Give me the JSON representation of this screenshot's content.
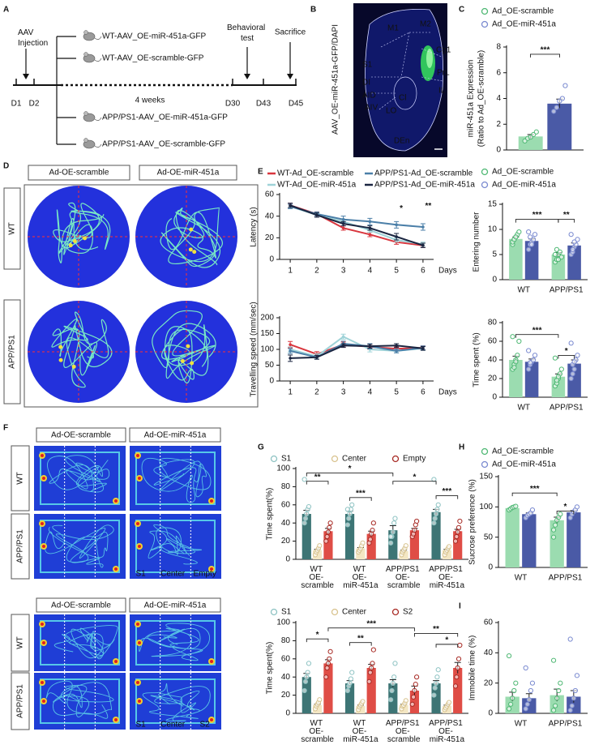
{
  "panels": [
    "A",
    "B",
    "C",
    "D",
    "E",
    "F",
    "G",
    "H",
    "I"
  ],
  "timeline": {
    "injection": "AAV Injection",
    "behavioral": "Behavioral test",
    "sacrifice": "Sacrifice",
    "days": [
      "D1",
      "D2",
      "D30",
      "D43",
      "D45"
    ],
    "duration": "4 weeks",
    "groups": [
      "WT-AAV_OE-miR-451a-GFP",
      "WT-AAV_OE-scramble-GFP",
      "APP/PS1-AAV_OE-miR-451a-GFP",
      "APP/PS1-AAV_OE-scramble-GFP"
    ]
  },
  "image": {
    "label": "AAV_OE-miR-451a-GFP/DAPI",
    "regions": [
      "M1",
      "M2",
      "Cg1",
      "PrL",
      "IL",
      "S1",
      "DI",
      "AID",
      "AIV",
      "LO",
      "Cl",
      "DEn"
    ]
  },
  "maze": {
    "columns": [
      "Ad-OE-scramble",
      "Ad-OE-miR-451a"
    ],
    "rows": [
      "WT",
      "APP/PS1"
    ]
  },
  "three_chamber": {
    "blocks": [
      {
        "columns": [
          "Ad-OE-scramble",
          "Ad-OE-miR-451a"
        ],
        "rows": [
          "WT",
          "APP/PS1"
        ],
        "zones": [
          "S1",
          "Center",
          "Empty"
        ]
      },
      {
        "columns": [
          "Ad-OE-scramble",
          "Ad-OE-miR-451a"
        ],
        "rows": [
          "WT",
          "APP/PS1"
        ],
        "zones": [
          "S1",
          "Center",
          "S2"
        ]
      }
    ]
  },
  "chart_data": [
    {
      "type": "bar",
      "ylabel": [
        "miR-451a Expression",
        "(Ratio to Ad_OE-scramble)"
      ],
      "categories": [
        null
      ],
      "series": [
        {
          "name": "Ad_OE-scramble",
          "color": "#9bdcb0",
          "point_color": "#4fb874",
          "values": [
            1.05
          ],
          "errors": [
            0.15
          ],
          "points": [
            [
              0.7,
              0.9,
              1.0,
              1.2,
              1.4
            ]
          ]
        },
        {
          "name": "Ad_OE-miR-451a",
          "color": "#4a5aa6",
          "point_color": "#7a8ad0",
          "values": [
            3.6
          ],
          "errors": [
            0.35
          ],
          "points": [
            [
              3.0,
              3.3,
              3.8,
              4.0,
              5.0
            ]
          ]
        }
      ],
      "ylim": [
        0,
        8
      ],
      "yticks": [
        0,
        2,
        4,
        6,
        8
      ],
      "legend": "top",
      "annotations": [
        "***"
      ]
    },
    {
      "type": "line",
      "ylabel": "Latency (s)",
      "xlabel": "Days",
      "x": [
        1,
        2,
        3,
        4,
        5,
        6
      ],
      "series": [
        {
          "name": "WT-Ad_OE-scramble",
          "color": "#d9363e",
          "values": [
            50,
            42,
            29,
            23,
            16,
            13
          ],
          "errors": [
            2,
            2,
            2,
            2,
            2,
            2
          ]
        },
        {
          "name": "WT-Ad_OE-miR-451a",
          "color": "#9fd3d8",
          "values": [
            49,
            41,
            35,
            27,
            18,
            14
          ],
          "errors": [
            2,
            2,
            2,
            2,
            2,
            2
          ]
        },
        {
          "name": "APP/PS1-Ad_OE-scramble",
          "color": "#4b7fa8",
          "values": [
            49,
            42,
            37,
            35,
            32,
            30
          ],
          "errors": [
            2,
            2,
            3,
            3,
            3,
            3
          ]
        },
        {
          "name": "APP/PS1-Ad_OE-miR-451a",
          "color": "#1a2540",
          "values": [
            50,
            41,
            33,
            29,
            21,
            13
          ],
          "errors": [
            2,
            2,
            2,
            2,
            3,
            2
          ]
        }
      ],
      "xlim": [
        0.6,
        6.4
      ],
      "xticks": [
        1,
        2,
        3,
        4,
        5,
        6
      ],
      "ylim": [
        0,
        60
      ],
      "yticks": [
        0,
        20,
        40,
        60
      ],
      "legend": "top",
      "annotations": [
        "*",
        "**"
      ]
    },
    {
      "type": "line",
      "ylabel": "Travelling speed (mm/sec)",
      "xlabel": "Days",
      "x": [
        1,
        2,
        3,
        4,
        5,
        6
      ],
      "series": [
        {
          "color": "#d9363e",
          "values": [
            115,
            85,
            115,
            108,
            102,
            105
          ],
          "errors": [
            10,
            8,
            8,
            8,
            6,
            6
          ]
        },
        {
          "color": "#9fd3d8",
          "values": [
            100,
            78,
            140,
            100,
            95,
            103
          ],
          "errors": [
            8,
            8,
            8,
            8,
            6,
            6
          ]
        },
        {
          "color": "#4b7fa8",
          "values": [
            95,
            75,
            118,
            110,
            95,
            105
          ],
          "errors": [
            8,
            6,
            8,
            8,
            6,
            6
          ]
        },
        {
          "color": "#1a2540",
          "values": [
            72,
            75,
            112,
            110,
            112,
            103
          ],
          "errors": [
            10,
            6,
            6,
            6,
            6,
            6
          ]
        }
      ],
      "xlim": [
        0.6,
        6.4
      ],
      "xticks": [
        1,
        2,
        3,
        4,
        5,
        6
      ],
      "ylim": [
        0,
        200
      ],
      "yticks": [
        0,
        50,
        100,
        150,
        200
      ]
    },
    {
      "type": "bar",
      "ylabel": "Entering number",
      "categories": [
        "WT",
        "APP/PS1"
      ],
      "series": [
        {
          "name": "Ad_OE-scramble",
          "color": "#9bdcb0",
          "point_color": "#4fb874",
          "values": [
            8.1,
            5.0
          ],
          "errors": [
            0.4,
            0.4
          ],
          "points": [
            [
              7,
              8,
              8.5,
              9,
              9.5,
              7.5,
              8,
              8.5
            ],
            [
              3.5,
              4,
              5,
              5.5,
              4.5,
              5,
              6,
              4
            ]
          ]
        },
        {
          "name": "Ad_OE-miR-451a",
          "color": "#4a5aa6",
          "point_color": "#7a8ad0",
          "values": [
            7.7,
            6.8
          ],
          "errors": [
            0.4,
            0.5
          ],
          "points": [
            [
              6,
              7,
              7.5,
              8,
              9,
              9.5,
              8.5,
              7
            ],
            [
              5,
              5.5,
              6.5,
              7,
              8,
              9,
              6,
              7.5
            ]
          ]
        }
      ],
      "ylim": [
        0,
        15
      ],
      "yticks": [
        0,
        5,
        10,
        15
      ],
      "legend": "top",
      "annotations": [
        "***",
        "**"
      ]
    },
    {
      "type": "bar",
      "ylabel": "Time spent (%)",
      "categories": [
        "WT",
        "APP/PS1"
      ],
      "series": [
        {
          "color": "#9bdcb0",
          "point_color": "#4fb874",
          "values": [
            40,
            22
          ],
          "errors": [
            4,
            3
          ],
          "points": [
            [
              30,
              35,
              40,
              45,
              60,
              65,
              32,
              38
            ],
            [
              12,
              15,
              20,
              25,
              30,
              42,
              18,
              22
            ]
          ]
        },
        {
          "color": "#4a5aa6",
          "point_color": "#7a8ad0",
          "values": [
            38,
            36
          ],
          "errors": [
            3,
            4
          ],
          "points": [
            [
              30,
              35,
              38,
              40,
              45,
              50,
              37
            ],
            [
              20,
              25,
              30,
              40,
              45,
              58,
              35,
              38
            ]
          ]
        }
      ],
      "ylim": [
        0,
        80
      ],
      "yticks": [
        0,
        20,
        40,
        60,
        80
      ],
      "annotations": [
        "***",
        "*"
      ]
    },
    {
      "type": "bar",
      "ylabel": "Time spent(%)",
      "categories": [
        "WT OE- scramble",
        "WT OE- miR-451a",
        "APP/PS1 OE- scramble",
        "APP/PS1 OE- miR-451a"
      ],
      "series": [
        {
          "name": "S1",
          "color": "#3d7575",
          "point_color": "#8ec3c3",
          "values": [
            50,
            50,
            32,
            52
          ],
          "errors": [
            4,
            3,
            5,
            3
          ],
          "points": [
            [
              40,
              45,
              50,
              55,
              58,
              88
            ],
            [
              38,
              45,
              50,
              55,
              60,
              55
            ],
            [
              18,
              25,
              30,
              40,
              45,
              25
            ],
            [
              40,
              45,
              50,
              55,
              60,
              88
            ]
          ]
        },
        {
          "name": "Center",
          "color": "#f3e6c3",
          "point_color": "#d8c38f",
          "values": [
            10,
            12,
            9,
            10
          ],
          "errors": [
            1,
            1,
            1,
            1
          ],
          "points": [
            [
              5,
              8,
              10,
              12,
              15
            ],
            [
              8,
              10,
              12,
              15,
              18
            ],
            [
              5,
              8,
              10,
              12,
              15
            ],
            [
              5,
              8,
              10,
              12,
              14
            ]
          ]
        },
        {
          "name": "Empty",
          "color": "#df4d46",
          "point_color": "#a82a24",
          "values": [
            31,
            28,
            32,
            31
          ],
          "errors": [
            3,
            3,
            2,
            2
          ],
          "points": [
            [
              20,
              25,
              30,
              35,
              40
            ],
            [
              18,
              22,
              28,
              32,
              40
            ],
            [
              25,
              28,
              32,
              38,
              42
            ],
            [
              20,
              25,
              30,
              35,
              42
            ]
          ]
        }
      ],
      "ylim": [
        0,
        100
      ],
      "yticks": [
        0,
        20,
        40,
        60,
        80,
        100
      ],
      "legend": "top",
      "annotations": [
        "**",
        "***",
        "*",
        "*",
        "***"
      ]
    },
    {
      "type": "bar",
      "ylabel": "Time spent(%)",
      "categories": [
        "WT OE- scramble",
        "WT OE- miR-451a",
        "APP/PS1 OE- scramble",
        "APP/PS1 OE- miR-451a"
      ],
      "series": [
        {
          "name": "S1",
          "color": "#3d7575",
          "point_color": "#8ec3c3",
          "values": [
            40,
            33,
            33,
            33
          ],
          "errors": [
            4,
            3,
            4,
            3
          ],
          "points": [
            [
              25,
              35,
              40,
              45,
              55
            ],
            [
              25,
              30,
              33,
              38,
              45
            ],
            [
              15,
              25,
              33,
              40,
              55
            ],
            [
              20,
              28,
              33,
              40,
              48
            ]
          ]
        },
        {
          "name": "Center",
          "color": "#f3e6c3",
          "point_color": "#d8c38f",
          "values": [
            9,
            8,
            9,
            8
          ],
          "errors": [
            1,
            1,
            1,
            1
          ],
          "points": [
            [
              5,
              8,
              10,
              12,
              15
            ],
            [
              4,
              7,
              9,
              11,
              13
            ],
            [
              5,
              8,
              9,
              11,
              14
            ],
            [
              4,
              6,
              8,
              10,
              12
            ]
          ]
        },
        {
          "name": "S2",
          "color": "#df4d46",
          "point_color": "#a82a24",
          "values": [
            55,
            50,
            25,
            50
          ],
          "errors": [
            4,
            4,
            5,
            6
          ],
          "points": [
            [
              40,
              50,
              55,
              60,
              68
            ],
            [
              35,
              45,
              50,
              55,
              70
            ],
            [
              10,
              18,
              25,
              32,
              40
            ],
            [
              30,
              40,
              50,
              60,
              75
            ]
          ]
        }
      ],
      "ylim": [
        0,
        100
      ],
      "yticks": [
        0,
        20,
        40,
        60,
        80,
        100
      ],
      "legend": "top",
      "annotations": [
        "*",
        "**",
        "***",
        "**",
        "*"
      ]
    },
    {
      "type": "bar",
      "ylabel": "Sucrose preference (%)",
      "categories": [
        "WT",
        "APP/PS1"
      ],
      "series": [
        {
          "name": "Ad_OE-scramble",
          "color": "#9bdcb0",
          "point_color": "#4fb874",
          "values": [
            98,
            78
          ],
          "errors": [
            1,
            5
          ],
          "points": [
            [
              95,
              97,
              99,
              100,
              101
            ],
            [
              62,
              70,
              78,
              83,
              88,
              50
            ]
          ]
        },
        {
          "name": "Ad_OE-miR-451a",
          "color": "#4a5aa6",
          "point_color": "#7a8ad0",
          "values": [
            88,
            91
          ],
          "errors": [
            2,
            3
          ],
          "points": [
            [
              82,
              86,
              88,
              90,
              95
            ],
            [
              82,
              88,
              92,
              95,
              100
            ]
          ]
        }
      ],
      "ylim": [
        0,
        150
      ],
      "yticks": [
        0,
        50,
        100,
        150
      ],
      "legend": "top",
      "annotations": [
        "***",
        "*"
      ]
    },
    {
      "type": "bar",
      "ylabel": "Immobile time (%)",
      "categories": [
        "WT",
        "APP/PS1"
      ],
      "series": [
        {
          "color": "#9bdcb0",
          "point_color": "#4fb874",
          "values": [
            11,
            12
          ],
          "errors": [
            3,
            4
          ],
          "points": [
            [
              3,
              6,
              10,
              15,
              20,
              38
            ],
            [
              2,
              5,
              10,
              15,
              20,
              35
            ]
          ]
        },
        {
          "color": "#4a5aa6",
          "point_color": "#7a8ad0",
          "values": [
            10,
            11
          ],
          "errors": [
            3,
            4
          ],
          "points": [
            [
              3,
              6,
              9,
              15,
              20,
              30
            ],
            [
              2,
              5,
              10,
              15,
              25,
              49
            ]
          ]
        }
      ],
      "ylim": [
        0,
        60
      ],
      "yticks": [
        0,
        20,
        40,
        60
      ]
    }
  ]
}
